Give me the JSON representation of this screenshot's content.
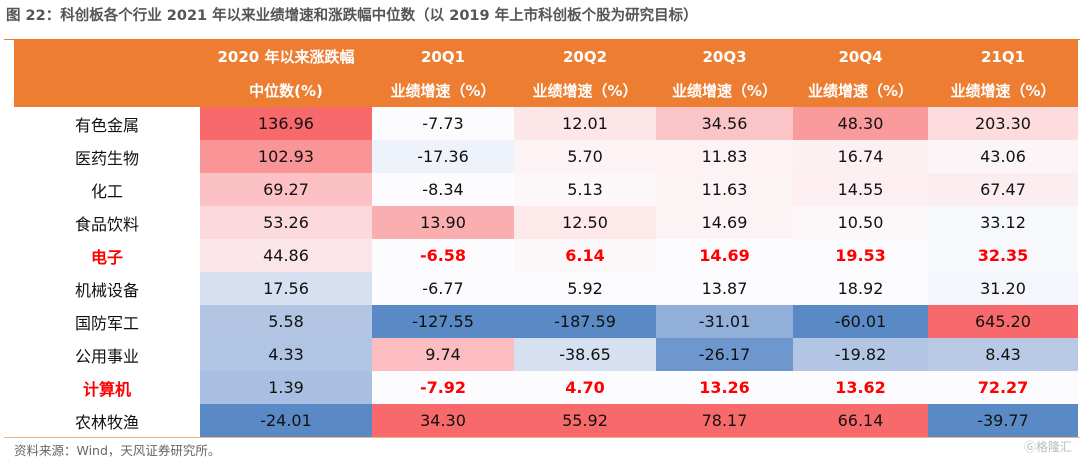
{
  "chart_data": {
    "type": "heatmap",
    "title": "图 22：科创板各个行业 2021 年以来业绩增速和涨跌幅中位数（以 2019 年上市科创板个股为研究目标）",
    "columns": [
      [
        "2020 年以来涨跌幅",
        "中位数(%)"
      ],
      [
        "20Q1",
        "业绩增速（%）"
      ],
      [
        "20Q2",
        "业绩增速（%）"
      ],
      [
        "20Q3",
        "业绩增速（%）"
      ],
      [
        "20Q4",
        "业绩增速（%）"
      ],
      [
        "21Q1",
        "业绩增速（%）"
      ]
    ],
    "rows": [
      {
        "label": "有色金属",
        "highlight": false,
        "values": [
          "136.96",
          "-7.73",
          "12.01",
          "34.56",
          "48.30",
          "203.30"
        ],
        "colors": [
          "#f8696b",
          "#fcfcff",
          "#fde6e8",
          "#fbc5c8",
          "#f99a9c",
          "#fcdcdf"
        ]
      },
      {
        "label": "医药生物",
        "highlight": false,
        "values": [
          "102.93",
          "-17.36",
          "5.70",
          "11.83",
          "16.74",
          "43.06"
        ],
        "colors": [
          "#f99597",
          "#eef2fa",
          "#fdf3f5",
          "#fdf3f5",
          "#fcf0f2",
          "#fcf5f7"
        ]
      },
      {
        "label": "化工",
        "highlight": false,
        "values": [
          "69.27",
          "-8.34",
          "5.13",
          "11.63",
          "14.55",
          "67.47"
        ],
        "colors": [
          "#fbc1c3",
          "#fcfcff",
          "#fcf8fa",
          "#fcf3f5",
          "#fdeff1",
          "#fceef0"
        ]
      },
      {
        "label": "食品饮料",
        "highlight": false,
        "values": [
          "53.26",
          "13.90",
          "12.50",
          "14.69",
          "10.50",
          "33.12"
        ],
        "colors": [
          "#fcd9dc",
          "#faaeb0",
          "#fde8ea",
          "#fcf3f5",
          "#fcf8fa",
          "#f7f8fc"
        ]
      },
      {
        "label": "电子",
        "highlight": true,
        "values": [
          "44.86",
          "-6.58",
          "6.14",
          "14.69",
          "19.53",
          "32.35"
        ],
        "colors": [
          "#fce5e8",
          "#fcfcff",
          "#fcf8fa",
          "#fcfcff",
          "#fcfcff",
          "#f7f8fc"
        ]
      },
      {
        "label": "机械设备",
        "highlight": false,
        "values": [
          "17.56",
          "-6.77",
          "5.92",
          "13.87",
          "18.92",
          "31.20"
        ],
        "colors": [
          "#d6e0f0",
          "#fcfcff",
          "#fcfcff",
          "#fcfcff",
          "#fcfcff",
          "#f4f6fb"
        ]
      },
      {
        "label": "国防军工",
        "highlight": false,
        "values": [
          "5.58",
          "-127.55",
          "-187.59",
          "-31.01",
          "-60.01",
          "645.20"
        ],
        "colors": [
          "#b2c6e4",
          "#5a8ac6",
          "#5a8ac6",
          "#92afda",
          "#5a8ac6",
          "#f8696b"
        ]
      },
      {
        "label": "公用事业",
        "highlight": false,
        "values": [
          "4.33",
          "9.74",
          "-38.65",
          "-26.17",
          "-19.82",
          "8.43"
        ],
        "colors": [
          "#b0c4e3",
          "#fbbdc0",
          "#d6e0f0",
          "#6d97cd",
          "#b2c6e4",
          "#b7c9e5"
        ]
      },
      {
        "label": "计算机",
        "highlight": true,
        "values": [
          "1.39",
          "-7.92",
          "4.70",
          "13.26",
          "13.62",
          "72.27"
        ],
        "colors": [
          "#a9bfe1",
          "#fcfcff",
          "#fcfcff",
          "#fcfcff",
          "#fcfcff",
          "#fcfcff"
        ]
      },
      {
        "label": "农林牧渔",
        "highlight": false,
        "values": [
          "-24.01",
          "34.30",
          "55.92",
          "78.17",
          "66.14",
          "-39.77"
        ],
        "colors": [
          "#5a8ac6",
          "#f8696b",
          "#f8696b",
          "#f8696b",
          "#f8696b",
          "#5a8ac6"
        ]
      }
    ],
    "source": "资料来源：Wind，天风证券研究所。"
  },
  "colors": {
    "header": "#ed7d31",
    "highlight_text": "#ff0000"
  },
  "watermark": "格隆汇"
}
